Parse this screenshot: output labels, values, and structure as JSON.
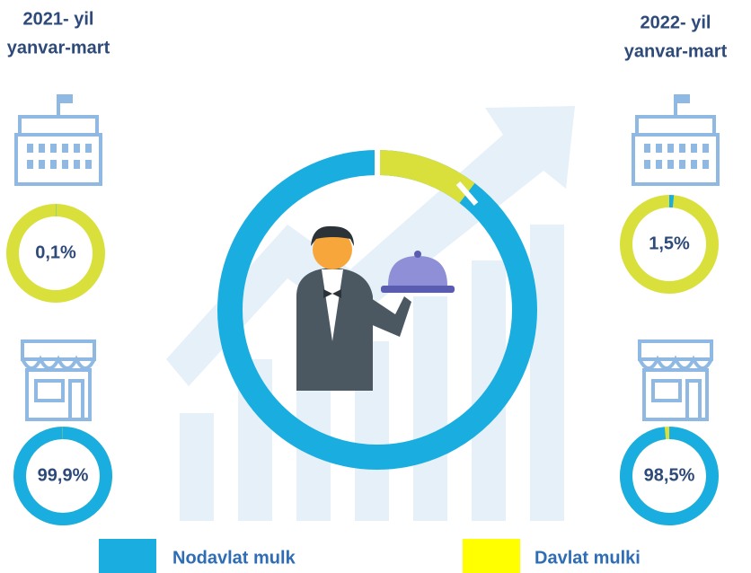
{
  "periods": [
    {
      "title": [
        "2021- yil",
        "yanvar-mart"
      ],
      "donuts": [
        {
          "value": 0.1,
          "label": "0,1%"
        },
        {
          "value": 99.9,
          "label": "99,9%"
        }
      ]
    },
    {
      "title": [
        "2022- yil",
        "yanvar-mart"
      ],
      "donuts": [
        {
          "value": 1.5,
          "label": "1,5%"
        },
        {
          "value": 98.5,
          "label": "98,5%"
        }
      ]
    }
  ],
  "segment_color": "#1aaee0",
  "ring_color": "#d9e03c",
  "legend": [
    {
      "name": "Nodavlat mulk",
      "color": "#1aaee0"
    },
    {
      "name": "Davlat mulki",
      "color": "#ffff00"
    }
  ]
}
